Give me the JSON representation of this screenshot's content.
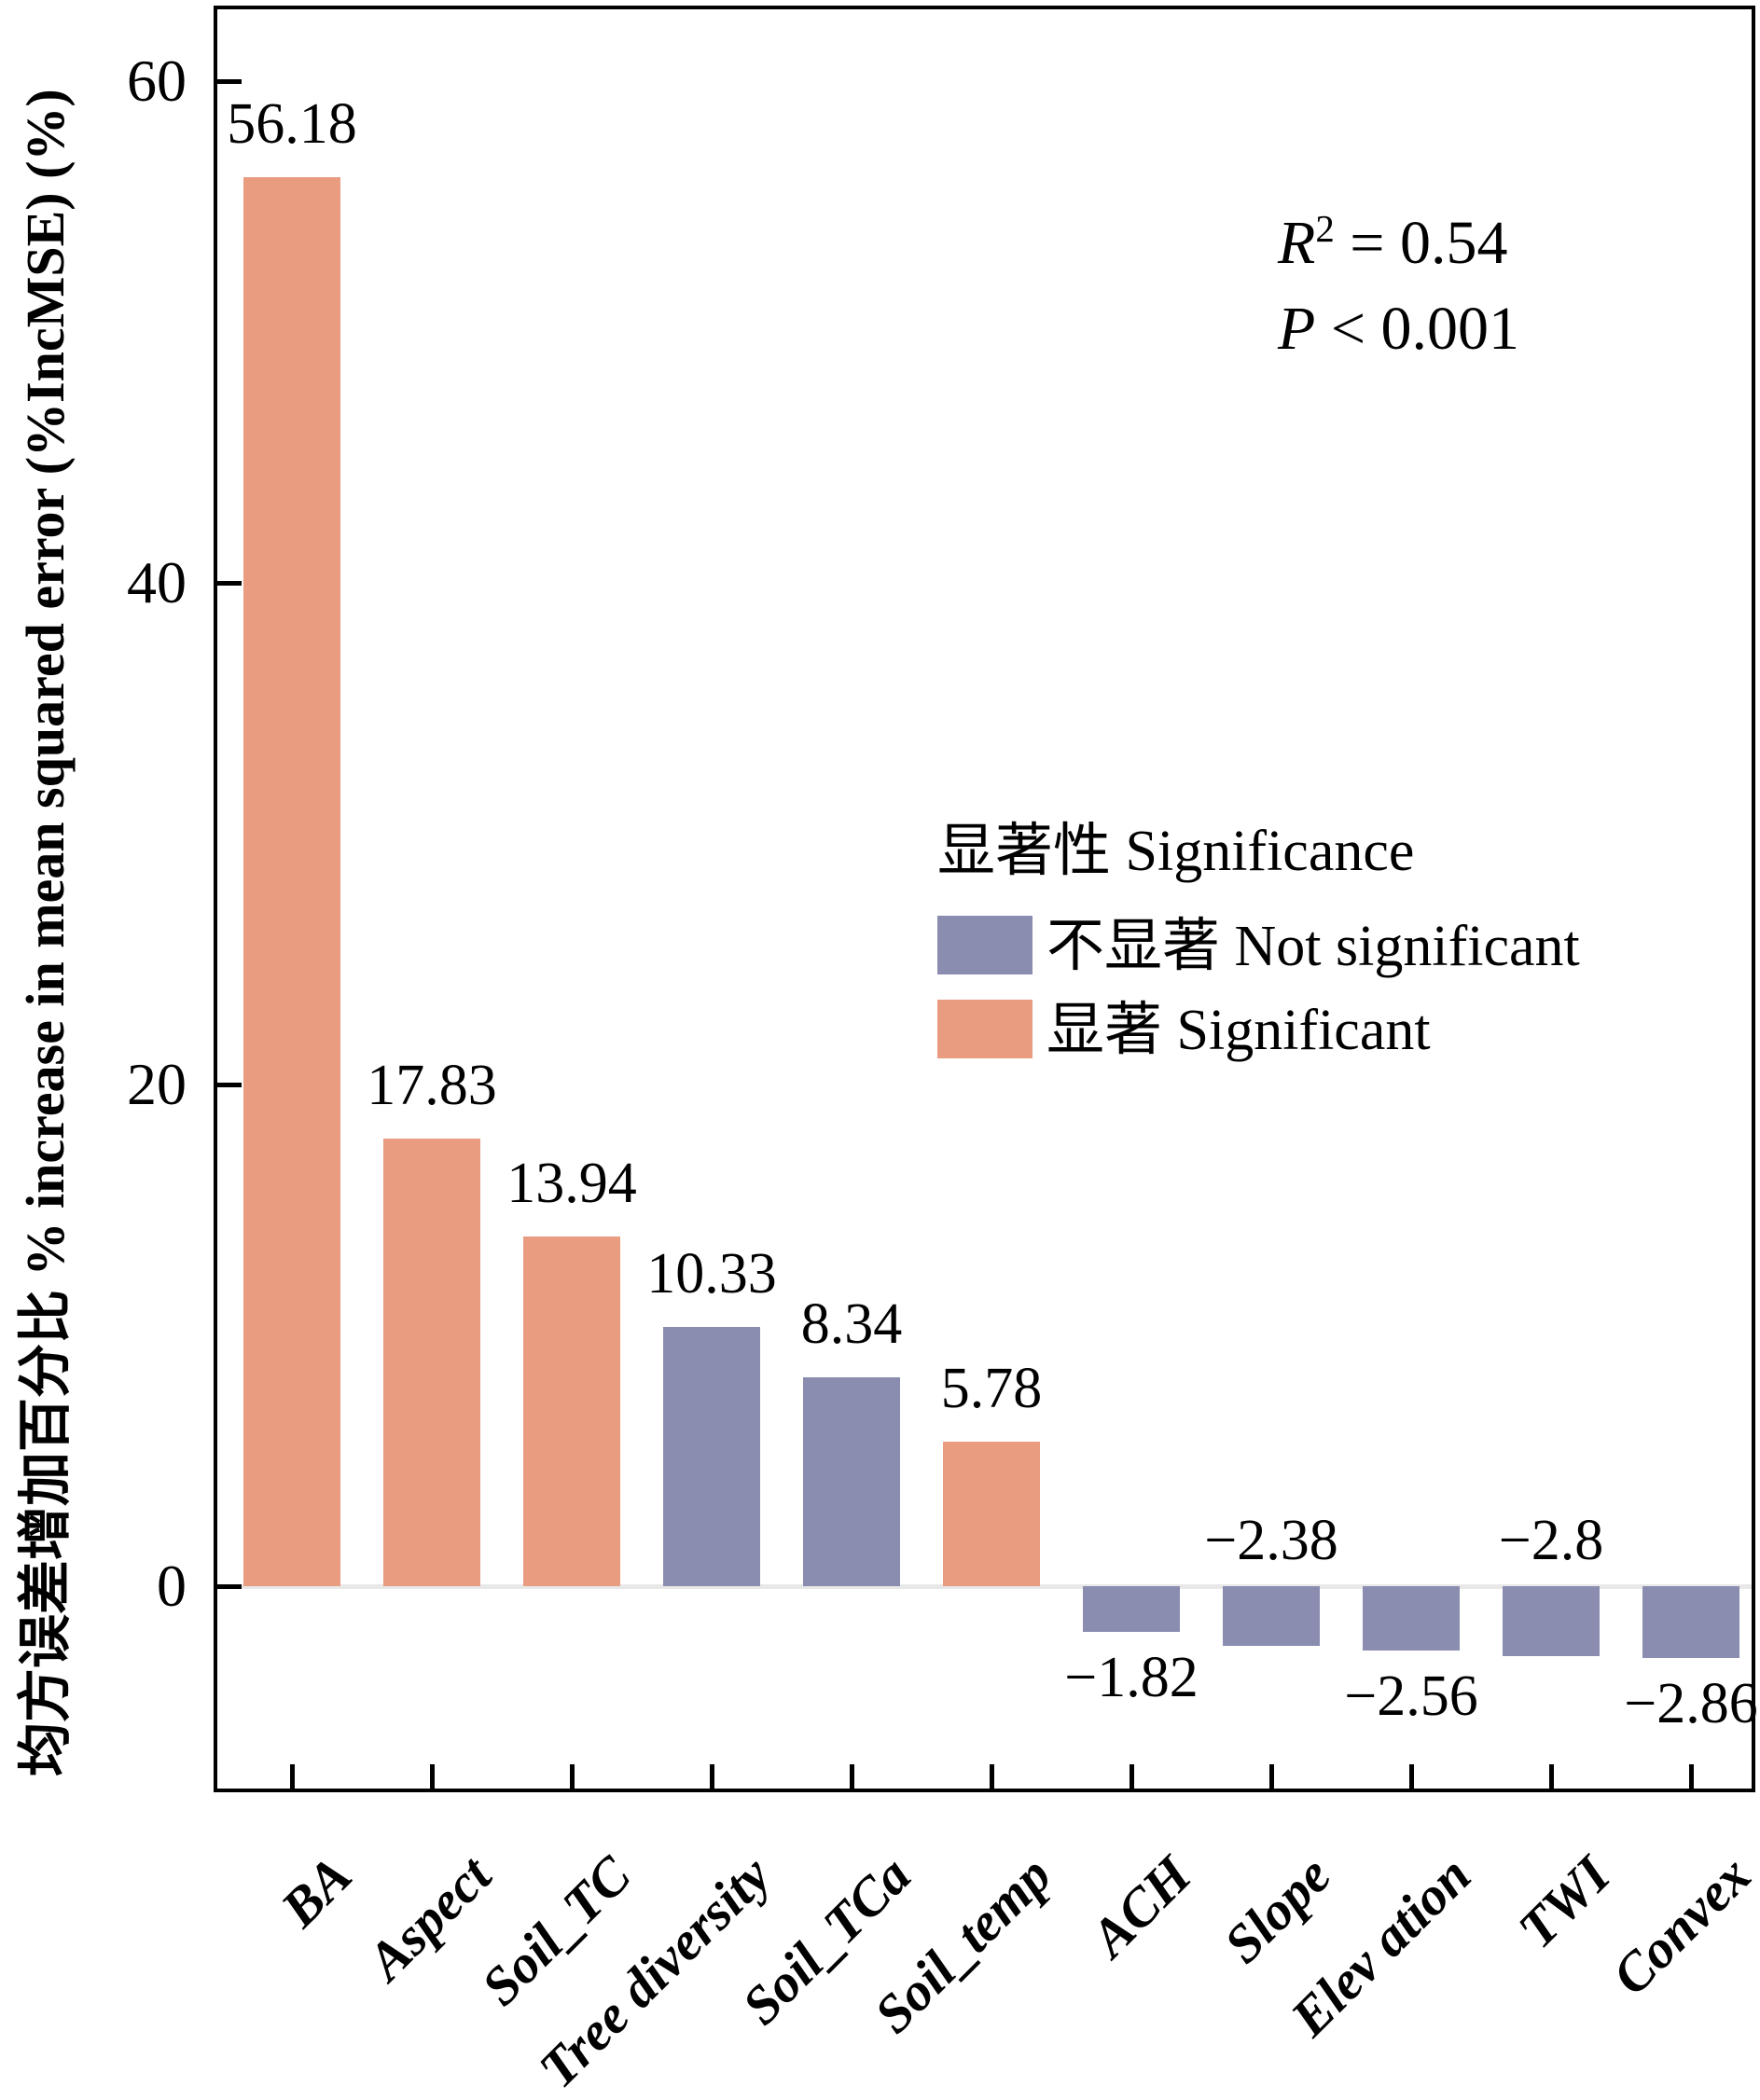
{
  "figure": {
    "y_axis_title": "均方误差增加百分比 % increase in mean squared error (%IncMSE) (%)",
    "annotation": {
      "lines": [
        {
          "symbol": "R",
          "sup": "2",
          "rest": " = 0.54"
        },
        {
          "symbol": "P",
          "sup": "",
          "rest": " < 0.001"
        }
      ]
    }
  },
  "legend": {
    "title": "显著性 Significance",
    "items": [
      {
        "label": "不显著 Not significant",
        "key": "not_significant",
        "color": "#8A8DAF"
      },
      {
        "label": "显著 Significant",
        "key": "significant",
        "color": "#E99C80"
      }
    ]
  },
  "chart_data": {
    "type": "bar",
    "title": "",
    "xlabel": "",
    "ylabel": "均方误差增加百分比 % increase in mean squared error (%IncMSE) (%)",
    "categories": [
      "BA",
      "Aspect",
      "Soil_TC",
      "Tree diversity",
      "Soil_TCa",
      "Soil_temp",
      "ACH",
      "Slope",
      "Elev ation",
      "TWI",
      "Convex"
    ],
    "values": [
      56.18,
      17.83,
      13.94,
      10.33,
      8.34,
      5.78,
      -1.82,
      -2.38,
      -2.56,
      -2.8,
      -2.86
    ],
    "value_labels": [
      "56.18",
      "17.83",
      "13.94",
      "10.33",
      "8.34",
      "5.78",
      "−1.82",
      "−2.38",
      "−2.56",
      "−2.8",
      "−2.86"
    ],
    "significant": [
      true,
      true,
      true,
      false,
      false,
      true,
      false,
      false,
      false,
      false,
      false
    ],
    "value_label_placement": [
      "above-bar",
      "above-bar",
      "above-bar",
      "above-bar",
      "above-bar",
      "above-bar",
      "below-bar",
      "above-axis",
      "below-bar",
      "above-axis",
      "below-bar"
    ],
    "series_legend": {
      "significant": "显著 Significant",
      "not_significant": "不显著 Not significant"
    },
    "colors": {
      "significant": "#E99C80",
      "not_significant": "#8A8DAF",
      "zero_line": "#E8E8E8",
      "axis": "#000000"
    },
    "y_ticks": [
      60,
      40,
      20,
      0
    ],
    "ylim": [
      -8.2,
      63.0
    ],
    "grid": false,
    "legend_position": "inside center-right",
    "stats_annotation": {
      "r_squared": "0.54",
      "p_value": "< 0.001"
    }
  }
}
